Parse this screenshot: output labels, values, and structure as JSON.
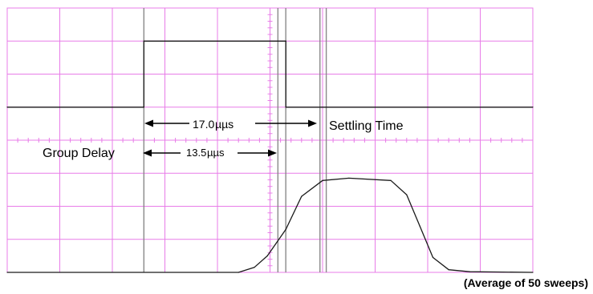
{
  "colors": {
    "grid": "#e87ce8",
    "trace": "#1a1a1a",
    "cursor": "#8a8a8a",
    "background": "#ffffff"
  },
  "chart_data": {
    "type": "line",
    "title": "",
    "xlabel": "",
    "ylabel": "",
    "grid": true,
    "x_divisions": 10,
    "y_divisions": 8,
    "xlim": [
      0,
      10
    ],
    "ylim": [
      0,
      8
    ],
    "series": [
      {
        "x": [
          0,
          2.6,
          2.6,
          5.3,
          5.3,
          10
        ],
        "y": [
          5.0,
          5.0,
          7.0,
          7.0,
          5.0,
          5.0
        ]
      },
      {
        "x": [
          0,
          4.4,
          4.7,
          4.95,
          5.3,
          5.6,
          6.0,
          6.5,
          7.3,
          7.6,
          7.85,
          8.1,
          8.4,
          8.8,
          10
        ],
        "y": [
          0.0,
          0.0,
          0.15,
          0.5,
          1.3,
          2.3,
          2.78,
          2.85,
          2.78,
          2.35,
          1.4,
          0.45,
          0.08,
          0.02,
          0.0
        ]
      }
    ],
    "cursors_x": [
      2.6,
      5.15,
      5.3,
      5.95,
      6.07
    ],
    "annotations": {
      "settling_value": "17.0",
      "settling_unit": "µµs",
      "settling_label": "Settling Time",
      "group_label": "Group Delay",
      "group_value": "13.5",
      "group_unit": "µµs",
      "footnote": "(Average of 50 sweeps)"
    }
  }
}
